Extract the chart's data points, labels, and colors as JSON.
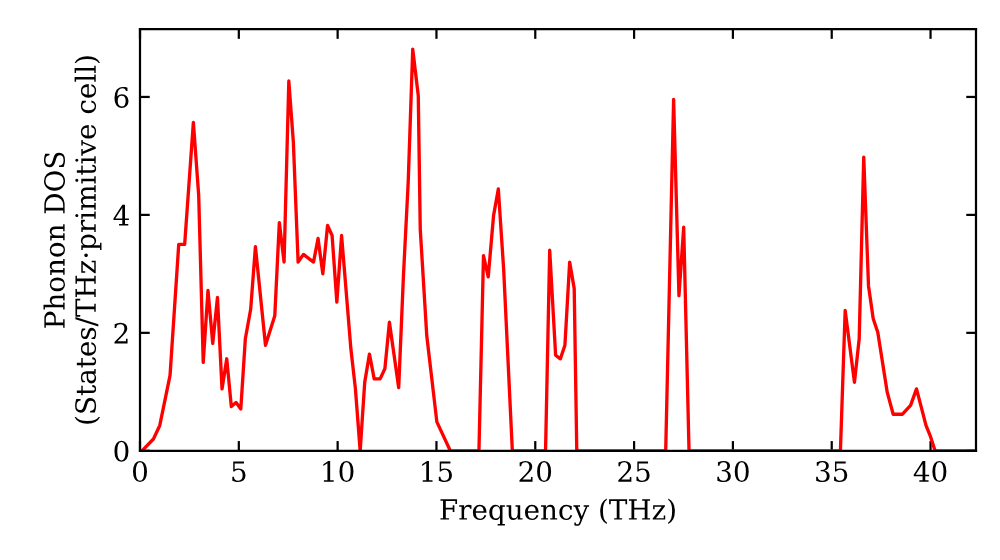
{
  "chart_data": {
    "type": "line",
    "xlabel": "Frequency (THz)",
    "ylabel": "Phonon DOS\n(States/THz·primitive cell)",
    "series": [
      {
        "color": "#ff0000",
        "x": [
          0.1,
          0.68,
          1.0,
          1.52,
          1.96,
          2.26,
          2.7,
          2.97,
          3.2,
          3.44,
          3.68,
          3.92,
          4.15,
          4.39,
          4.62,
          4.86,
          5.1,
          5.33,
          5.6,
          5.84,
          6.35,
          6.82,
          7.05,
          7.29,
          7.53,
          7.76,
          8.0,
          8.27,
          8.78,
          9.01,
          9.25,
          9.49,
          9.72,
          9.96,
          10.2,
          10.67,
          10.9,
          11.14,
          11.37,
          11.61,
          11.85,
          12.15,
          12.39,
          12.62,
          13.09,
          13.33,
          13.57,
          13.8,
          14.08,
          14.18,
          14.51,
          15.02,
          15.7,
          17.15,
          17.38,
          17.62,
          17.89,
          18.13,
          18.4,
          18.84,
          20.52,
          20.73,
          21.03,
          21.27,
          21.5,
          21.74,
          21.97,
          22.1,
          26.6,
          27.0,
          27.27,
          27.51,
          27.78,
          35.44,
          35.68,
          36.15,
          36.39,
          36.62,
          36.86,
          37.1,
          37.33,
          37.81,
          38.11,
          38.58,
          38.99,
          39.29,
          39.77,
          40.0,
          40.23,
          42.3
        ],
        "values": [
          0,
          0.2,
          0.43,
          1.28,
          3.5,
          3.5,
          5.57,
          4.33,
          1.5,
          2.72,
          1.82,
          2.6,
          1.05,
          1.56,
          0.75,
          0.82,
          0.71,
          1.9,
          2.4,
          3.46,
          1.79,
          2.29,
          3.87,
          3.2,
          6.27,
          5.23,
          3.2,
          3.33,
          3.2,
          3.6,
          3.0,
          3.82,
          3.65,
          2.52,
          3.65,
          1.73,
          1.05,
          0,
          1.16,
          1.64,
          1.22,
          1.22,
          1.39,
          2.18,
          1.07,
          2.97,
          4.55,
          6.81,
          6.02,
          3.76,
          1.95,
          0.49,
          0,
          0,
          3.31,
          2.95,
          3.99,
          4.44,
          3.08,
          0,
          0,
          3.4,
          1.62,
          1.56,
          1.79,
          3.2,
          2.75,
          0,
          0,
          5.96,
          2.63,
          3.79,
          0,
          0,
          2.38,
          1.16,
          1.9,
          4.98,
          2.8,
          2.24,
          2.01,
          0.99,
          0.62,
          0.62,
          0.77,
          1.05,
          0.43,
          0.24,
          0,
          0
        ]
      }
    ],
    "xlim": [
      0,
      42.3
    ],
    "ylim": [
      0,
      7.15
    ],
    "xticks": [
      0,
      5,
      10,
      15,
      20,
      25,
      30,
      35,
      40
    ],
    "yticks": [
      0,
      2,
      4,
      6
    ],
    "grid": false,
    "legend": false,
    "marker": "none",
    "line_style": "solid"
  }
}
